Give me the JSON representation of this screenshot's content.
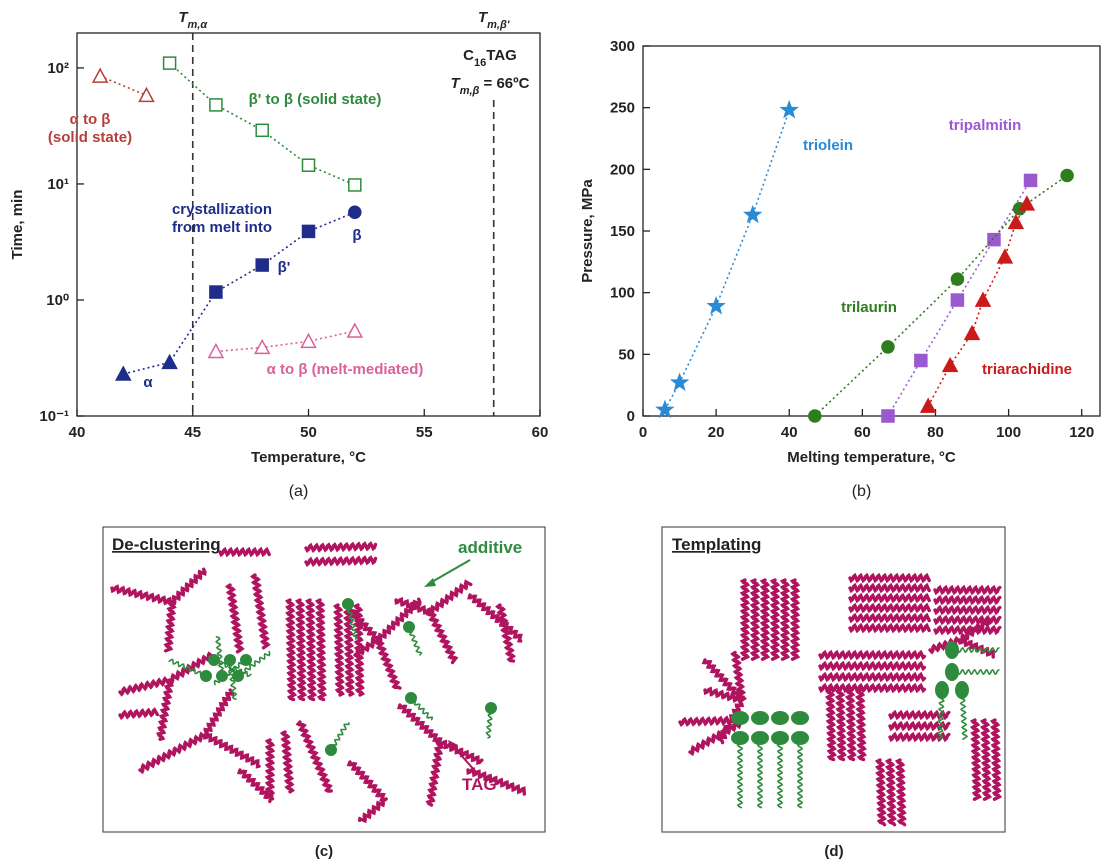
{
  "chart_data": [
    {
      "type": "line",
      "panel_label": "(a)",
      "x_label": "Temperature, °C",
      "y_label": "Time, min",
      "xlim": [
        40,
        60
      ],
      "xticks": [
        40,
        45,
        50,
        55,
        60
      ],
      "ylim": [
        0.1,
        200
      ],
      "ylog": true,
      "yticks": [
        {
          "value": 0.1,
          "label": "10⁻¹"
        },
        {
          "value": 1,
          "label": "10⁰"
        },
        {
          "value": 10,
          "label": "10¹"
        },
        {
          "value": 100,
          "label": "10²"
        }
      ],
      "vlines": [
        {
          "x": 45,
          "label": [
            "T",
            "m,α"
          ]
        },
        {
          "x": 58,
          "label": [
            "T",
            "m,β'"
          ]
        }
      ],
      "series": [
        {
          "color": "#b5403a",
          "marker": "triangle",
          "filled": false,
          "x": [
            41,
            43
          ],
          "values": [
            85,
            58
          ]
        },
        {
          "color": "#2e8b3e",
          "marker": "square",
          "filled": false,
          "x": [
            44,
            46,
            48,
            50,
            52
          ],
          "values": [
            110,
            48,
            29,
            14.5,
            9.8
          ]
        },
        {
          "color": "#1f2d8a",
          "marker": [
            "triangle",
            "triangle",
            "square",
            "square",
            "square",
            "circle"
          ],
          "filled": true,
          "x": [
            42,
            44,
            46,
            48,
            50,
            52
          ],
          "values": [
            0.23,
            0.29,
            1.17,
            2,
            3.9,
            5.7
          ]
        },
        {
          "color": "#d9609a",
          "marker": "triangle",
          "filled": false,
          "x": [
            46,
            48,
            50,
            52
          ],
          "values": [
            0.36,
            0.39,
            0.44,
            0.54
          ]
        }
      ],
      "annotations": [
        {
          "parts": [
            "α to β"
          ],
          "color": "#b5403a"
        },
        {
          "parts": [
            "(solid state)"
          ],
          "color": "#b5403a"
        },
        {
          "parts": [
            "β' to β (solid state)"
          ],
          "color": "#2e8b3e"
        },
        {
          "parts": [
            "crystallization"
          ],
          "color": "#1f2d8a"
        },
        {
          "parts": [
            "from melt into"
          ],
          "color": "#1f2d8a"
        },
        {
          "parts": [
            "β'"
          ],
          "color": "#1f2d8a"
        },
        {
          "parts": [
            "β"
          ],
          "color": "#1f2d8a"
        },
        {
          "parts": [
            "α"
          ],
          "color": "#1f2d8a"
        },
        {
          "parts": [
            "α to β (melt-mediated)"
          ],
          "color": "#d9609a"
        },
        {
          "parts": [
            "C",
            "16",
            "TAG"
          ],
          "color": "#222222"
        },
        {
          "parts": [
            "T",
            "m,β",
            " = 66ºC"
          ],
          "color": "#222222"
        }
      ]
    },
    {
      "type": "line",
      "panel_label": "(b)",
      "x_label": "Melting temperature, °C",
      "y_label": "Pressure, MPa",
      "xlim": [
        0,
        125
      ],
      "xticks": [
        0,
        20,
        40,
        60,
        80,
        100,
        120
      ],
      "ylim": [
        0,
        300
      ],
      "yticks": [
        0,
        50,
        100,
        150,
        200,
        250,
        300
      ],
      "series": [
        {
          "color": "#2a8ad4",
          "marker": "star",
          "filled": true,
          "x": [
            6,
            10,
            20,
            30,
            40
          ],
          "values": [
            5,
            27,
            89,
            163,
            248
          ]
        },
        {
          "color": "#9b59d0",
          "marker": "square",
          "filled": true,
          "x": [
            67,
            76,
            86,
            96,
            106
          ],
          "values": [
            0,
            45,
            94,
            143,
            191
          ]
        },
        {
          "color": "#2e7d1e",
          "marker": "circle",
          "filled": true,
          "x": [
            47,
            67,
            86,
            103,
            116
          ],
          "values": [
            0,
            56,
            111,
            168,
            195
          ]
        },
        {
          "color": "#cc1a1a",
          "marker": "triangle",
          "filled": true,
          "x": [
            78,
            84,
            90,
            93,
            99,
            102,
            105
          ],
          "values": [
            8,
            41,
            67,
            94,
            129,
            157,
            172
          ]
        }
      ],
      "annotations": [
        {
          "parts": [
            "triolein"
          ],
          "color": "#2a8ad4"
        },
        {
          "parts": [
            "tripalmitin"
          ],
          "color": "#9b59d0"
        },
        {
          "parts": [
            "trilaurin"
          ],
          "color": "#2e7d1e"
        },
        {
          "parts": [
            "triarachidine"
          ],
          "color": "#cc1a1a"
        }
      ]
    }
  ],
  "diagrams": [
    {
      "title": "De-clustering",
      "labels": [
        "additive",
        "TAG"
      ],
      "panel_label": "(c)"
    },
    {
      "title": "Templating",
      "panel_label": "(d)"
    }
  ]
}
